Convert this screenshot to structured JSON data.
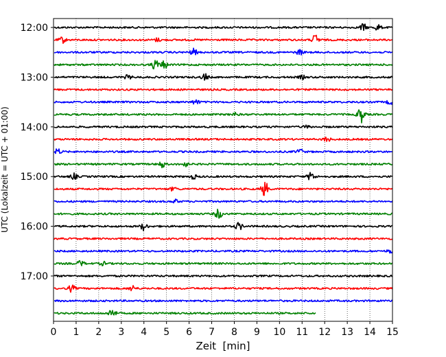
{
  "chart_data": {
    "type": "line",
    "title": "",
    "xlabel": "Zeit  [min]",
    "ylabel": "UTC (Lokalzeit = UTC + 01:00)",
    "xlim": [
      0,
      15
    ],
    "x_ticks": [
      "0",
      "1",
      "2",
      "3",
      "4",
      "5",
      "6",
      "7",
      "8",
      "9",
      "10",
      "11",
      "12",
      "13",
      "14",
      "15"
    ],
    "y_tick_labels": [
      "12:00",
      "13:00",
      "14:00",
      "15:00",
      "16:00",
      "17:00"
    ],
    "row_interval_minutes": 15,
    "grid": "vertical dotted",
    "colors": [
      "#000000",
      "#ff0000",
      "#0000ff",
      "#008000"
    ],
    "traces": [
      {
        "start": "12:00",
        "color": "#000000",
        "end_min": 15,
        "events": [
          {
            "t": 13.7,
            "amp": 0.45
          },
          {
            "t": 14.35,
            "amp": 0.35
          }
        ]
      },
      {
        "start": "12:15",
        "color": "#ff0000",
        "end_min": 15,
        "events": [
          {
            "t": 0.4,
            "amp": 0.35
          },
          {
            "t": 4.6,
            "amp": 0.2
          },
          {
            "t": 11.6,
            "amp": 0.65
          }
        ]
      },
      {
        "start": "12:30",
        "color": "#0000ff",
        "end_min": 15,
        "events": [
          {
            "t": 6.2,
            "amp": 0.4
          },
          {
            "t": 10.9,
            "amp": 0.3
          }
        ]
      },
      {
        "start": "12:45",
        "color": "#008000",
        "end_min": 15,
        "events": [
          {
            "t": 4.5,
            "amp": 0.6
          },
          {
            "t": 4.9,
            "amp": 0.45
          }
        ]
      },
      {
        "start": "13:00",
        "color": "#000000",
        "end_min": 15,
        "events": [
          {
            "t": 3.3,
            "amp": 0.25
          },
          {
            "t": 6.7,
            "amp": 0.4
          },
          {
            "t": 11.0,
            "amp": 0.2
          }
        ]
      },
      {
        "start": "13:15",
        "color": "#ff0000",
        "end_min": 15,
        "events": []
      },
      {
        "start": "13:30",
        "color": "#0000ff",
        "end_min": 15,
        "events": [
          {
            "t": 6.3,
            "amp": 0.3
          },
          {
            "t": 14.9,
            "amp": 0.25
          }
        ]
      },
      {
        "start": "13:45",
        "color": "#008000",
        "end_min": 15,
        "events": [
          {
            "t": 8.0,
            "amp": 0.2
          },
          {
            "t": 13.6,
            "amp": 1.0
          }
        ]
      },
      {
        "start": "14:00",
        "color": "#000000",
        "end_min": 15,
        "events": [
          {
            "t": 11.2,
            "amp": 0.15
          }
        ]
      },
      {
        "start": "14:15",
        "color": "#ff0000",
        "end_min": 15,
        "events": [
          {
            "t": 12.1,
            "amp": 0.3
          }
        ]
      },
      {
        "start": "14:30",
        "color": "#0000ff",
        "end_min": 15,
        "events": [
          {
            "t": 0.2,
            "amp": 0.35
          },
          {
            "t": 10.9,
            "amp": 0.3
          }
        ]
      },
      {
        "start": "14:45",
        "color": "#008000",
        "end_min": 15,
        "events": [
          {
            "t": 4.8,
            "amp": 0.4
          },
          {
            "t": 5.8,
            "amp": 0.3
          }
        ]
      },
      {
        "start": "15:00",
        "color": "#000000",
        "end_min": 15,
        "events": [
          {
            "t": 0.9,
            "amp": 0.35
          },
          {
            "t": 6.2,
            "amp": 0.25
          },
          {
            "t": 11.4,
            "amp": 0.55
          }
        ]
      },
      {
        "start": "15:15",
        "color": "#ff0000",
        "end_min": 15,
        "events": [
          {
            "t": 5.3,
            "amp": 0.2
          },
          {
            "t": 9.35,
            "amp": 0.9
          }
        ]
      },
      {
        "start": "15:30",
        "color": "#0000ff",
        "end_min": 15,
        "events": [
          {
            "t": 5.4,
            "amp": 0.2
          }
        ]
      },
      {
        "start": "15:45",
        "color": "#008000",
        "end_min": 15,
        "events": [
          {
            "t": 7.3,
            "amp": 0.6
          }
        ]
      },
      {
        "start": "16:00",
        "color": "#000000",
        "end_min": 15,
        "events": [
          {
            "t": 4.0,
            "amp": 0.45
          },
          {
            "t": 8.2,
            "amp": 0.45
          }
        ]
      },
      {
        "start": "16:15",
        "color": "#ff0000",
        "end_min": 15,
        "events": []
      },
      {
        "start": "16:30",
        "color": "#0000ff",
        "end_min": 15,
        "events": [
          {
            "t": 14.9,
            "amp": 0.2
          }
        ]
      },
      {
        "start": "16:45",
        "color": "#008000",
        "end_min": 15,
        "events": [
          {
            "t": 1.2,
            "amp": 0.35
          },
          {
            "t": 2.2,
            "amp": 0.2
          }
        ]
      },
      {
        "start": "17:00",
        "color": "#000000",
        "end_min": 15,
        "events": []
      },
      {
        "start": "17:15",
        "color": "#ff0000",
        "end_min": 15,
        "events": [
          {
            "t": 0.8,
            "amp": 0.4
          },
          {
            "t": 3.5,
            "amp": 0.35
          }
        ]
      },
      {
        "start": "17:30",
        "color": "#0000ff",
        "end_min": 15,
        "events": []
      },
      {
        "start": "17:45",
        "color": "#008000",
        "end_min": 11.6,
        "events": [
          {
            "t": 2.6,
            "amp": 0.6
          }
        ]
      }
    ]
  }
}
